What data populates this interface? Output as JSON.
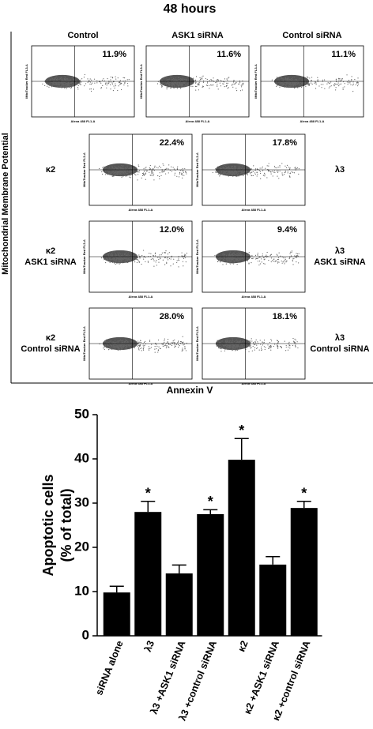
{
  "figure": {
    "title": "48 hours",
    "y_label": "Mitochondrial Membrane Potential",
    "x_label": "Annexin V",
    "panel_x_label": "Alexa 488 FL1-A",
    "panel_y_label": "MitoTracker Red FL3-A",
    "panels": [
      {
        "label": [
          "Control"
        ],
        "percent": "11.9%"
      },
      {
        "label": [
          "ASK1 siRNA"
        ],
        "percent": "11.6%"
      },
      {
        "label": [
          "Control siRNA"
        ],
        "percent": "11.1%"
      },
      {
        "label": [
          "κ2"
        ],
        "percent": "22.4%"
      },
      {
        "label": [
          "λ3"
        ],
        "percent": "17.8%"
      },
      {
        "label": [
          "κ2",
          "ASK1 siRNA"
        ],
        "percent": "12.0%"
      },
      {
        "label": [
          "λ3",
          "ASK1 siRNA"
        ],
        "percent": "9.4%"
      },
      {
        "label": [
          "κ2",
          "Control siRNA"
        ],
        "percent": "28.0%"
      },
      {
        "label": [
          "λ3",
          "Control siRNA"
        ],
        "percent": "18.1%"
      }
    ]
  },
  "chart_data": {
    "type": "bar",
    "y_label": [
      "Apoptotic cells",
      "(% of total)"
    ],
    "categories": [
      "siRNA alone",
      "λ3",
      "λ3 +ASK1 siRNA",
      "λ3 +control siRNA",
      "κ2",
      "κ2 +ASK1 siRNA",
      "κ2 +control siRNA"
    ],
    "values": [
      9.8,
      28.0,
      14.1,
      27.5,
      39.8,
      16.1,
      28.9
    ],
    "errors": [
      1.4,
      2.4,
      1.9,
      1.0,
      4.8,
      1.8,
      1.5
    ],
    "significance": [
      null,
      "*",
      null,
      "*",
      "*",
      null,
      "*"
    ],
    "color": "#000000",
    "ylim": [
      0,
      50
    ],
    "yticks": [
      0,
      10,
      20,
      30,
      40,
      50
    ]
  }
}
